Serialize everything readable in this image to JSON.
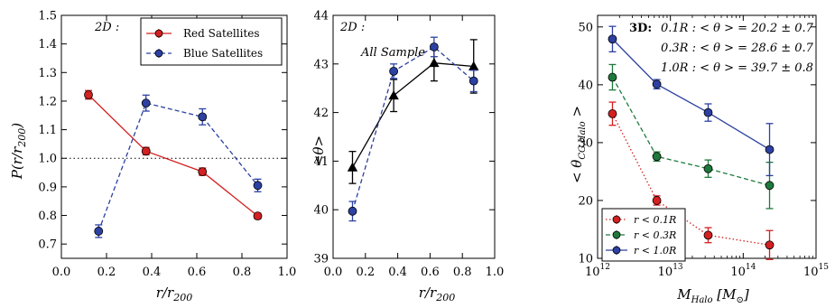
{
  "chart_data": [
    {
      "type": "line",
      "annotation": "2D :",
      "xlabel": "r/r200",
      "ylabel": "P(r/r200)",
      "xlim": [
        0.0,
        1.0
      ],
      "ylim": [
        0.65,
        1.5
      ],
      "xticks": [
        "0.0",
        "0.2",
        "0.4",
        "0.6",
        "0.8",
        "1.0"
      ],
      "yticks": [
        "0.7",
        "0.8",
        "0.9",
        "1.0",
        "1.1",
        "1.2",
        "1.3",
        "1.4",
        "1.5"
      ],
      "reference_line_y": 1.0,
      "legend_position": "top-right",
      "series": [
        {
          "name": "Red Satellites",
          "color": "#d42020",
          "style": "solid",
          "x": [
            0.12,
            0.375,
            0.625,
            0.87
          ],
          "y": [
            1.222,
            1.025,
            0.953,
            0.798
          ],
          "err": [
            0.015,
            0.013,
            0.013,
            0.01
          ]
        },
        {
          "name": "Blue Satellites",
          "color": "#2c41a2",
          "style": "dashed",
          "x": [
            0.165,
            0.375,
            0.625,
            0.87
          ],
          "y": [
            0.745,
            1.193,
            1.145,
            0.905
          ],
          "err": [
            0.022,
            0.028,
            0.028,
            0.022
          ]
        }
      ]
    },
    {
      "type": "line",
      "annotation": "2D :",
      "annotation2": "All Sample",
      "xlabel": "r/r200",
      "ylabel": "<θ>",
      "xlim": [
        0.0,
        1.0
      ],
      "ylim": [
        39.0,
        44.0
      ],
      "xticks": [
        "0.0",
        "0.2",
        "0.4",
        "0.6",
        "0.8",
        "1.0"
      ],
      "yticks": [
        "39",
        "40",
        "41",
        "42",
        "43",
        "44"
      ],
      "series": [
        {
          "color": "#000000",
          "style": "solid",
          "marker": "triangle",
          "x": [
            0.12,
            0.375,
            0.625,
            0.87
          ],
          "y": [
            40.87,
            42.35,
            43.02,
            42.95
          ],
          "err": [
            0.33,
            0.33,
            0.37,
            0.55
          ]
        },
        {
          "color": "#2c41a2",
          "style": "dashed",
          "marker": "circle",
          "x": [
            0.12,
            0.375,
            0.625,
            0.87
          ],
          "y": [
            39.97,
            42.85,
            43.35,
            42.65
          ],
          "err": [
            0.2,
            0.15,
            0.2,
            0.22
          ]
        }
      ]
    },
    {
      "type": "line",
      "annotation": "3D:",
      "annotation_lines": [
        "0.1R : < θ > = 20.2 ± 0.7",
        "0.3R : < θ > = 28.6 ± 0.7",
        "1.0R : < θ > = 39.7 ± 0.8"
      ],
      "xlabel": "M_Halo [M⊙]",
      "ylabel": "< θ_CG,Halo >",
      "xscale": "log",
      "xlim": [
        1000000000000.0,
        1000000000000000.0
      ],
      "ylim": [
        10,
        52
      ],
      "xticks": [
        {
          "base": "10",
          "exp": "12"
        },
        {
          "base": "10",
          "exp": "13"
        },
        {
          "base": "10",
          "exp": "14"
        },
        {
          "base": "10",
          "exp": "15"
        }
      ],
      "yticks": [
        "10",
        "20",
        "30",
        "40",
        "50"
      ],
      "legend_position": "bottom-left",
      "series": [
        {
          "name": "r < 0.1R",
          "color": "#d42020",
          "style": "dotted",
          "x": [
            1600000000000.0,
            6500000000000.0,
            33000000000000.0,
            230000000000000.0
          ],
          "y": [
            35.0,
            20.0,
            14.0,
            12.3
          ],
          "err": [
            2.0,
            0.8,
            1.3,
            2.5
          ]
        },
        {
          "name": "r < 0.3R",
          "color": "#1e7a3c",
          "style": "dashed",
          "x": [
            1600000000000.0,
            6500000000000.0,
            33000000000000.0,
            230000000000000.0
          ],
          "y": [
            41.3,
            27.6,
            25.5,
            22.6
          ],
          "err": [
            2.2,
            0.8,
            1.5,
            4.0
          ]
        },
        {
          "name": "r < 1.0R",
          "color": "#2c41a2",
          "style": "solid",
          "x": [
            1600000000000.0,
            6500000000000.0,
            33000000000000.0,
            230000000000000.0
          ],
          "y": [
            47.9,
            40.1,
            35.2,
            28.8
          ],
          "err": [
            2.2,
            0.8,
            1.5,
            4.5
          ]
        }
      ]
    }
  ]
}
